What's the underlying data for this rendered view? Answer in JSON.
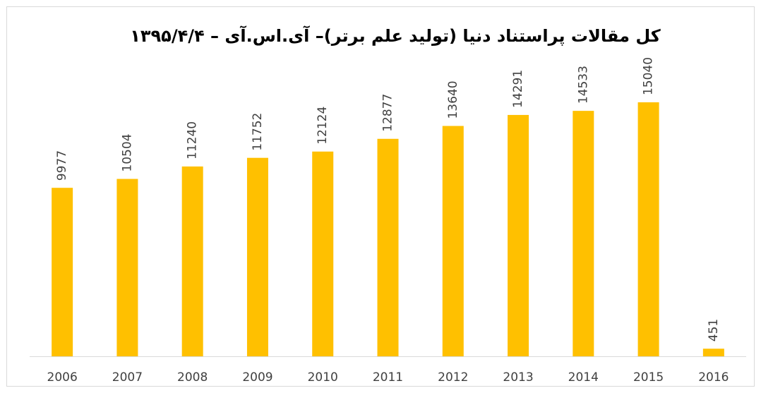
{
  "chart_data": {
    "type": "bar",
    "title": "کل مقالات پراستناد دنیا (تولید علم برتر)– آی.اس.آی – ۱۳۹۵/۴/۴",
    "categories": [
      "2006",
      "2007",
      "2008",
      "2009",
      "2010",
      "2011",
      "2012",
      "2013",
      "2014",
      "2015",
      "2016"
    ],
    "values": [
      9977,
      10504,
      11240,
      11752,
      12124,
      12877,
      13640,
      14291,
      14533,
      15040,
      451
    ],
    "color": "#ffc000"
  }
}
